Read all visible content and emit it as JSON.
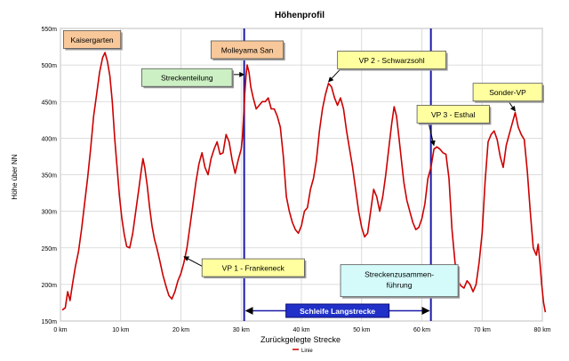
{
  "chart_data": {
    "type": "line",
    "title": "Höhenprofil",
    "xlabel": "Zurückgelegte Strecke",
    "ylabel": "Höhe über NN",
    "xlim": [
      0,
      80
    ],
    "ylim": [
      150,
      550
    ],
    "x_ticks": [
      0,
      10,
      20,
      30,
      40,
      50,
      60,
      70,
      80
    ],
    "x_tick_labels": [
      "0 km",
      "10 km",
      "20 km",
      "30 km",
      "40 km",
      "50 km",
      "60 km",
      "70 km",
      "80 km"
    ],
    "y_ticks": [
      150,
      200,
      250,
      300,
      350,
      400,
      450,
      500,
      550
    ],
    "y_tick_labels": [
      "150m",
      "200m",
      "250m",
      "300m",
      "350m",
      "400m",
      "450m",
      "500m",
      "550m"
    ],
    "grid": true,
    "legend": {
      "position": "bottom-center",
      "entries": [
        "Linie"
      ]
    },
    "series": [
      {
        "name": "Linie",
        "color": "#cc0000",
        "points": [
          [
            0.3,
            165
          ],
          [
            0.8,
            168
          ],
          [
            1.2,
            190
          ],
          [
            1.6,
            178
          ],
          [
            2,
            200
          ],
          [
            2.5,
            225
          ],
          [
            3,
            245
          ],
          [
            3.5,
            275
          ],
          [
            4,
            310
          ],
          [
            4.5,
            345
          ],
          [
            5,
            385
          ],
          [
            5.5,
            430
          ],
          [
            6,
            460
          ],
          [
            6.5,
            490
          ],
          [
            7,
            510
          ],
          [
            7.4,
            517
          ],
          [
            7.8,
            505
          ],
          [
            8.2,
            485
          ],
          [
            8.6,
            450
          ],
          [
            9,
            400
          ],
          [
            9.4,
            360
          ],
          [
            9.8,
            320
          ],
          [
            10.2,
            290
          ],
          [
            10.6,
            268
          ],
          [
            11,
            252
          ],
          [
            11.5,
            250
          ],
          [
            12,
            270
          ],
          [
            12.5,
            300
          ],
          [
            13,
            330
          ],
          [
            13.4,
            355
          ],
          [
            13.7,
            372
          ],
          [
            14,
            360
          ],
          [
            14.4,
            335
          ],
          [
            14.8,
            305
          ],
          [
            15.2,
            280
          ],
          [
            15.6,
            262
          ],
          [
            16,
            250
          ],
          [
            16.5,
            232
          ],
          [
            17,
            213
          ],
          [
            17.5,
            198
          ],
          [
            18,
            185
          ],
          [
            18.5,
            180
          ],
          [
            19,
            190
          ],
          [
            19.5,
            205
          ],
          [
            20,
            215
          ],
          [
            20.5,
            230
          ],
          [
            21,
            250
          ],
          [
            21.5,
            280
          ],
          [
            22,
            310
          ],
          [
            22.5,
            340
          ],
          [
            23,
            365
          ],
          [
            23.5,
            380
          ],
          [
            24,
            360
          ],
          [
            24.5,
            350
          ],
          [
            25,
            372
          ],
          [
            25.5,
            385
          ],
          [
            26,
            395
          ],
          [
            26.5,
            378
          ],
          [
            27,
            380
          ],
          [
            27.5,
            405
          ],
          [
            28,
            395
          ],
          [
            28.5,
            370
          ],
          [
            29,
            352
          ],
          [
            29.5,
            370
          ],
          [
            30,
            385
          ],
          [
            30.2,
            400
          ],
          [
            30.4,
            430
          ],
          [
            30.6,
            460
          ],
          [
            30.8,
            485
          ],
          [
            31,
            500
          ],
          [
            31.3,
            490
          ],
          [
            31.6,
            470
          ],
          [
            32,
            455
          ],
          [
            32.5,
            440
          ],
          [
            33,
            445
          ],
          [
            33.5,
            450
          ],
          [
            34,
            450
          ],
          [
            34.5,
            455
          ],
          [
            35,
            440
          ],
          [
            35.5,
            440
          ],
          [
            36,
            430
          ],
          [
            36.5,
            415
          ],
          [
            37,
            375
          ],
          [
            37.5,
            320
          ],
          [
            38,
            300
          ],
          [
            38.5,
            285
          ],
          [
            39,
            275
          ],
          [
            39.5,
            270
          ],
          [
            40,
            280
          ],
          [
            40.5,
            300
          ],
          [
            41,
            305
          ],
          [
            41.5,
            330
          ],
          [
            42,
            345
          ],
          [
            42.5,
            370
          ],
          [
            43,
            410
          ],
          [
            43.5,
            440
          ],
          [
            44,
            460
          ],
          [
            44.5,
            475
          ],
          [
            45,
            470
          ],
          [
            45.5,
            455
          ],
          [
            46,
            445
          ],
          [
            46.5,
            455
          ],
          [
            47,
            440
          ],
          [
            47.5,
            410
          ],
          [
            48,
            385
          ],
          [
            48.5,
            360
          ],
          [
            49,
            330
          ],
          [
            49.5,
            300
          ],
          [
            50,
            278
          ],
          [
            50.5,
            265
          ],
          [
            51,
            270
          ],
          [
            51.5,
            300
          ],
          [
            52,
            330
          ],
          [
            52.5,
            320
          ],
          [
            53,
            300
          ],
          [
            53.5,
            320
          ],
          [
            54,
            350
          ],
          [
            54.5,
            385
          ],
          [
            55,
            420
          ],
          [
            55.4,
            443
          ],
          [
            55.8,
            430
          ],
          [
            56.2,
            400
          ],
          [
            56.6,
            370
          ],
          [
            57,
            340
          ],
          [
            57.5,
            315
          ],
          [
            58,
            300
          ],
          [
            58.5,
            285
          ],
          [
            59,
            275
          ],
          [
            59.5,
            278
          ],
          [
            60,
            290
          ],
          [
            60.5,
            310
          ],
          [
            61,
            345
          ],
          [
            61.5,
            360
          ],
          [
            62,
            385
          ],
          [
            62.5,
            388
          ],
          [
            63,
            385
          ],
          [
            63.5,
            380
          ],
          [
            64,
            378
          ],
          [
            64.5,
            345
          ],
          [
            65,
            275
          ],
          [
            65.5,
            230
          ],
          [
            66,
            205
          ],
          [
            66.5,
            198
          ],
          [
            67,
            195
          ],
          [
            67.5,
            205
          ],
          [
            68,
            200
          ],
          [
            68.5,
            190
          ],
          [
            69,
            200
          ],
          [
            69.5,
            230
          ],
          [
            70,
            270
          ],
          [
            70.5,
            340
          ],
          [
            71,
            395
          ],
          [
            71.5,
            405
          ],
          [
            72,
            410
          ],
          [
            72.5,
            398
          ],
          [
            73,
            375
          ],
          [
            73.5,
            360
          ],
          [
            74,
            390
          ],
          [
            74.5,
            405
          ],
          [
            75,
            420
          ],
          [
            75.5,
            435
          ],
          [
            76,
            415
          ],
          [
            76.5,
            405
          ],
          [
            77,
            398
          ],
          [
            77.5,
            355
          ],
          [
            78,
            300
          ],
          [
            78.5,
            250
          ],
          [
            79,
            240
          ],
          [
            79.3,
            255
          ],
          [
            79.6,
            230
          ],
          [
            79.9,
            200
          ],
          [
            80.2,
            175
          ],
          [
            80.5,
            162
          ]
        ]
      }
    ],
    "vertical_lines": [
      30.5,
      61.5
    ],
    "span_arrow": {
      "from": 30.5,
      "to": 61.5,
      "y": 164,
      "label": "Schleife Langstrecke"
    },
    "annotations": [
      {
        "id": "kaisergarten",
        "text": "Kaisergarten",
        "style": "orange",
        "box_x": 0.5,
        "box_y": 547,
        "box_w": 9.5,
        "box_h": 20,
        "arrow": false
      },
      {
        "id": "molleyama",
        "text": "Molleyama San",
        "style": "orange",
        "box_x": 25.0,
        "box_y": 533,
        "box_w": 12.0,
        "box_h": 20,
        "arrow": false
      },
      {
        "id": "streckenteilung",
        "text": "Streckenteilung",
        "style": "green",
        "box_x": 13.5,
        "box_y": 495,
        "box_w": 15.0,
        "box_h": 20,
        "arrow": true,
        "arrow_from": [
          28.5,
          487
        ],
        "arrow_to": [
          30.5,
          487
        ]
      },
      {
        "id": "vp2",
        "text": "VP 2 - Schwarzsohl",
        "style": "yellow",
        "box_x": 46.0,
        "box_y": 519,
        "box_w": 18.0,
        "box_h": 20,
        "arrow": true,
        "arrow_from": [
          47.0,
          499
        ],
        "arrow_to": [
          44.5,
          477
        ]
      },
      {
        "id": "vp3",
        "text": "VP 3 - Esthal",
        "style": "yellow",
        "box_x": 59.2,
        "box_y": 445,
        "box_w": 12.0,
        "box_h": 20,
        "arrow": true,
        "arrow_from": [
          61.0,
          425
        ],
        "arrow_to": [
          62.0,
          390
        ]
      },
      {
        "id": "sondervp",
        "text": "Sonder-VP",
        "style": "yellow",
        "box_x": 68.5,
        "box_y": 475,
        "box_w": 11.5,
        "box_h": 20,
        "arrow": true,
        "arrow_from": [
          74.0,
          455
        ],
        "arrow_to": [
          75.5,
          437
        ]
      },
      {
        "id": "vp1",
        "text": "VP 1 - Frankeneck",
        "style": "yellow",
        "box_x": 23.5,
        "box_y": 235,
        "box_w": 17.0,
        "box_h": 20,
        "arrow": true,
        "arrow_from": [
          23.5,
          225
        ],
        "arrow_to": [
          20.5,
          238
        ]
      },
      {
        "id": "streckenzus",
        "text": "Streckenzusammen-führung",
        "style": "cyan",
        "box_x": 46.5,
        "box_y": 227,
        "box_w": 19.5,
        "box_h": 36,
        "arrow": true,
        "arrow_from": [
          57.5,
          191
        ],
        "arrow_to": [
          61.5,
          191
        ]
      }
    ]
  },
  "colors": {
    "line": "#cc0000",
    "marker_line": "#1a1aa8",
    "grid": "#d2d2d2",
    "box_orange": "#f8c89a",
    "box_green": "#ccf0c4",
    "box_yellow": "#ffffa0",
    "box_cyan": "#d4fafa",
    "span_box": "#2030c8"
  }
}
